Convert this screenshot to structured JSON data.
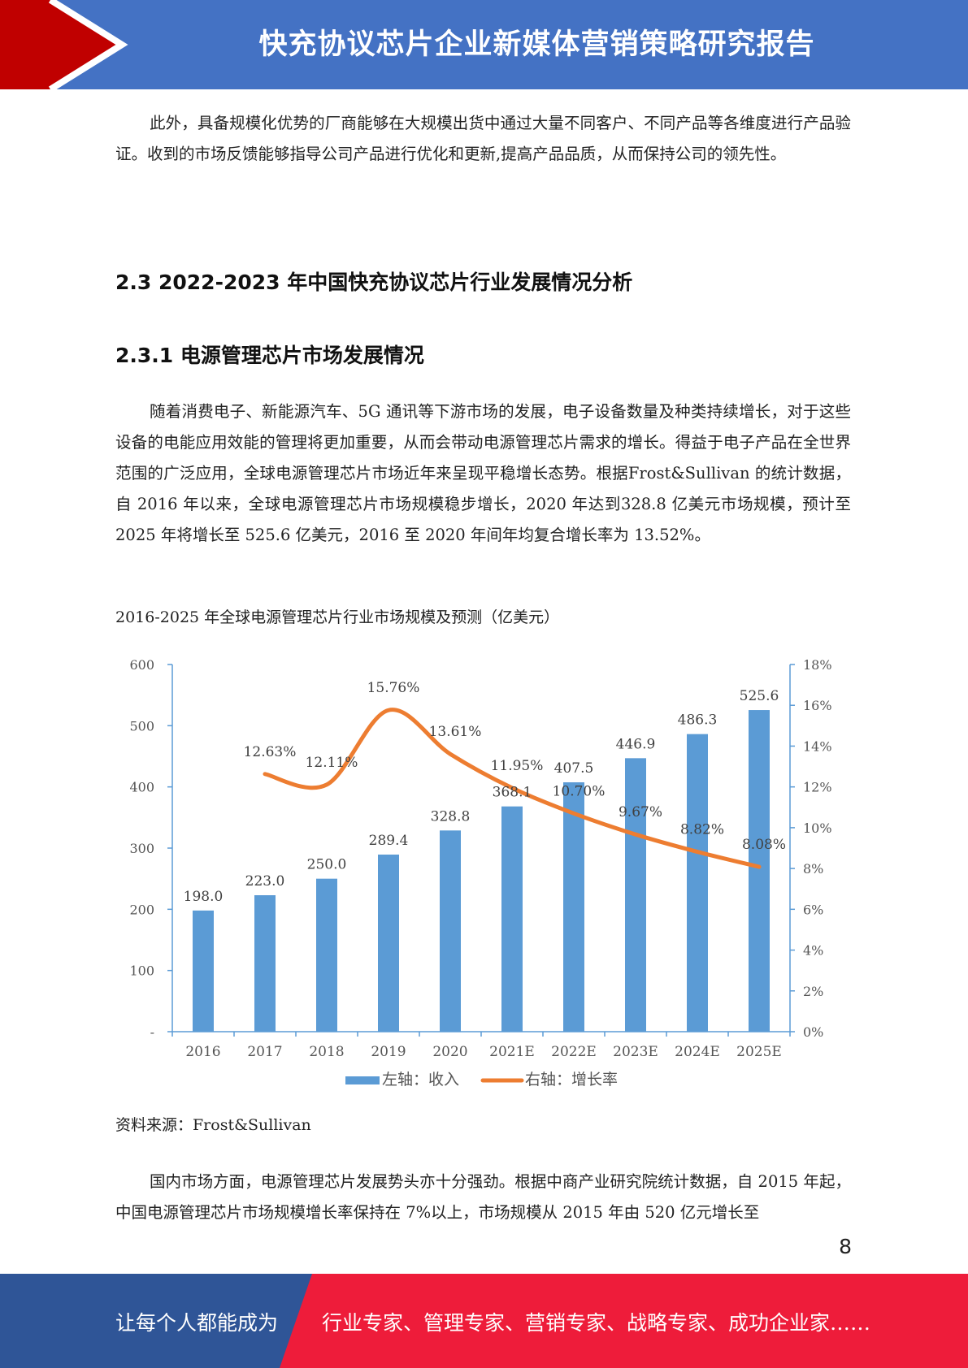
{
  "header": {
    "title": "快充协议芯片企业新媒体营销策略研究报告"
  },
  "paragraph1": "此外，具备规模化优势的厂商能够在大规模出货中通过大量不同客户、不同产品等各维度进行产品验证。收到的市场反馈能够指导公司产品进行优化和更新,提高产品品质，从而保持公司的领先性。",
  "section_2_3": "2.3 2022-2023 年中国快充协议芯片行业发展情况分析",
  "section_2_3_1": "2.3.1 电源管理芯片市场发展情况",
  "paragraph2": "随着消费电子、新能源汽车、5G 通讯等下游市场的发展，电子设备数量及种类持续增长，对于这些设备的电能应用效能的管理将更加重要，从而会带动电源管理芯片需求的增长。得益于电子产品在全世界范围的广泛应用，全球电源管理芯片市场近年来呈现平稳增长态势。根据Frost&Sullivan 的统计数据，自 2016 年以来，全球电源管理芯片市场规模稳步增长，2020 年达到328.8 亿美元市场规模，预计至 2025 年将增长至 525.6 亿美元，2016 至 2020 年间年均复合增长率为 13.52%。",
  "chart_caption": "2016-2025 年全球电源管理芯片行业市场规模及预测（亿美元）",
  "chart_data": {
    "type": "bar",
    "categories": [
      "2016",
      "2017",
      "2018",
      "2019",
      "2020",
      "2021E",
      "2022E",
      "2023E",
      "2024E",
      "2025E"
    ],
    "series": [
      {
        "name": "左轴：收入",
        "type": "bar",
        "axis": "left",
        "color": "#5b9bd5",
        "values": [
          198.0,
          223.0,
          250.0,
          289.4,
          328.8,
          368.1,
          407.5,
          446.9,
          486.3,
          525.6
        ],
        "labels": [
          "198.0",
          "223.0",
          "250.0",
          "289.4",
          "328.8",
          "368.1",
          "407.5",
          "446.9",
          "486.3",
          "525.6"
        ]
      },
      {
        "name": "右轴：增长率",
        "type": "line",
        "axis": "right",
        "color": "#ed7d31",
        "values": [
          null,
          12.63,
          12.11,
          15.76,
          13.61,
          11.95,
          10.7,
          9.67,
          8.82,
          8.08
        ],
        "labels": [
          "",
          "12.63%",
          "12.11%",
          "15.76%",
          "13.61%",
          "11.95%",
          "10.70%",
          "9.67%",
          "8.82%",
          "8.08%"
        ]
      }
    ],
    "left_axis": {
      "ylim": [
        0,
        600
      ],
      "ticks": [
        0,
        100,
        200,
        300,
        400,
        500,
        600
      ],
      "tick_labels": [
        "-",
        "100",
        "200",
        "300",
        "400",
        "500",
        "600"
      ]
    },
    "right_axis": {
      "ylim": [
        0,
        18
      ],
      "ticks": [
        0,
        2,
        4,
        6,
        8,
        10,
        12,
        14,
        16,
        18
      ],
      "tick_labels": [
        "0%",
        "2%",
        "4%",
        "6%",
        "8%",
        "10%",
        "12%",
        "14%",
        "16%",
        "18%"
      ]
    },
    "legend": "bottom",
    "grid": false
  },
  "source_note": "资料来源：Frost&Sullivan",
  "paragraph3": "国内市场方面，电源管理芯片发展势头亦十分强劲。根据中商产业研究院统计数据，自 2015 年起，中国电源管理芯片市场规模增长率保持在 7%以上，市场规模从 2015 年由 520 亿元增长至",
  "page_number": "8",
  "footer": {
    "slogan_left": "让每个人都能成为",
    "slogan_right": "行业专家、管理专家、营销专家、战略专家、成功企业家……"
  },
  "colors": {
    "header_blue": "#4472c4",
    "header_red": "#c00000",
    "footer_blue": "#2f5597",
    "footer_red": "#ee1c3a"
  }
}
